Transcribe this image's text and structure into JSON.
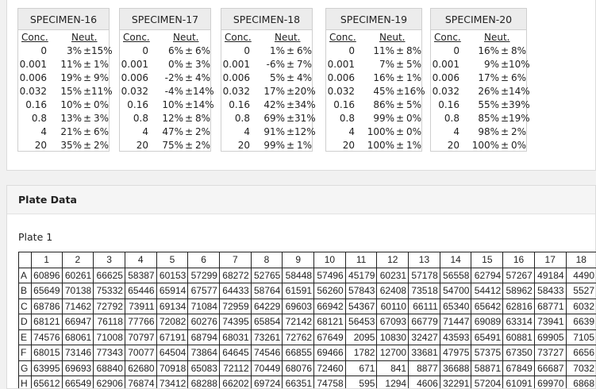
{
  "specimens": [
    {
      "name": "SPECIMEN-16",
      "conc_label": "Conc.",
      "neut_label": "Neut.",
      "rows": [
        [
          "0",
          "3%",
          "15%"
        ],
        [
          "0.001",
          "11%",
          "1%"
        ],
        [
          "0.006",
          "19%",
          "9%"
        ],
        [
          "0.032",
          "15%",
          "11%"
        ],
        [
          "0.16",
          "10%",
          "0%"
        ],
        [
          "0.8",
          "13%",
          "3%"
        ],
        [
          "4",
          "21%",
          "6%"
        ],
        [
          "20",
          "35%",
          "2%"
        ]
      ]
    },
    {
      "name": "SPECIMEN-17",
      "conc_label": "Conc.",
      "neut_label": "Neut.",
      "rows": [
        [
          "0",
          "6%",
          "6%"
        ],
        [
          "0.001",
          "0%",
          "3%"
        ],
        [
          "0.006",
          "-2%",
          "4%"
        ],
        [
          "0.032",
          "-4%",
          "14%"
        ],
        [
          "0.16",
          "10%",
          "14%"
        ],
        [
          "0.8",
          "12%",
          "8%"
        ],
        [
          "4",
          "47%",
          "2%"
        ],
        [
          "20",
          "75%",
          "2%"
        ]
      ]
    },
    {
      "name": "SPECIMEN-18",
      "conc_label": "Conc.",
      "neut_label": "Neut.",
      "rows": [
        [
          "0",
          "1%",
          "6%"
        ],
        [
          "0.001",
          "-6%",
          "7%"
        ],
        [
          "0.006",
          "5%",
          "4%"
        ],
        [
          "0.032",
          "17%",
          "20%"
        ],
        [
          "0.16",
          "42%",
          "34%"
        ],
        [
          "0.8",
          "69%",
          "31%"
        ],
        [
          "4",
          "91%",
          "12%"
        ],
        [
          "20",
          "99%",
          "1%"
        ]
      ]
    },
    {
      "name": "SPECIMEN-19",
      "conc_label": "Conc.",
      "neut_label": "Neut.",
      "rows": [
        [
          "0",
          "11%",
          "8%"
        ],
        [
          "0.001",
          "7%",
          "5%"
        ],
        [
          "0.006",
          "16%",
          "1%"
        ],
        [
          "0.032",
          "45%",
          "16%"
        ],
        [
          "0.16",
          "86%",
          "5%"
        ],
        [
          "0.8",
          "99%",
          "0%"
        ],
        [
          "4",
          "100%",
          "0%"
        ],
        [
          "20",
          "100%",
          "1%"
        ]
      ]
    },
    {
      "name": "SPECIMEN-20",
      "conc_label": "Conc.",
      "neut_label": "Neut.",
      "rows": [
        [
          "0",
          "16%",
          "8%"
        ],
        [
          "0.001",
          "9%",
          "10%"
        ],
        [
          "0.006",
          "17%",
          "6%"
        ],
        [
          "0.032",
          "26%",
          "14%"
        ],
        [
          "0.16",
          "55%",
          "39%"
        ],
        [
          "0.8",
          "85%",
          "19%"
        ],
        [
          "4",
          "98%",
          "2%"
        ],
        [
          "20",
          "100%",
          "0%"
        ]
      ]
    }
  ],
  "pm_symbol": "±",
  "plate_section": {
    "title": "Plate Data",
    "plate_label": "Plate 1",
    "columns": [
      "1",
      "2",
      "3",
      "4",
      "5",
      "6",
      "7",
      "8",
      "9",
      "10",
      "11",
      "12",
      "13",
      "14",
      "15",
      "16",
      "17",
      "18"
    ],
    "rows": [
      {
        "label": "A",
        "values": [
          "60896",
          "60261",
          "66625",
          "58387",
          "60153",
          "57299",
          "68272",
          "52765",
          "58448",
          "57496",
          "45179",
          "60231",
          "57178",
          "56558",
          "62794",
          "57267",
          "49184",
          "4490"
        ]
      },
      {
        "label": "B",
        "values": [
          "65649",
          "70138",
          "75332",
          "65446",
          "65914",
          "67577",
          "64433",
          "58764",
          "61591",
          "56260",
          "57843",
          "62408",
          "73518",
          "54700",
          "54412",
          "58962",
          "58433",
          "5527"
        ]
      },
      {
        "label": "C",
        "values": [
          "68786",
          "71462",
          "72792",
          "73911",
          "69134",
          "71084",
          "72959",
          "64229",
          "69603",
          "66942",
          "54367",
          "60110",
          "66111",
          "65340",
          "65642",
          "62816",
          "68771",
          "6032"
        ]
      },
      {
        "label": "D",
        "values": [
          "68121",
          "66947",
          "76118",
          "77766",
          "72082",
          "60276",
          "74395",
          "65854",
          "72142",
          "68121",
          "56453",
          "67093",
          "66779",
          "71447",
          "69089",
          "63314",
          "73941",
          "6639"
        ]
      },
      {
        "label": "E",
        "values": [
          "74576",
          "68061",
          "71008",
          "70797",
          "67191",
          "68794",
          "68031",
          "73261",
          "72762",
          "67649",
          "2095",
          "10830",
          "32427",
          "43593",
          "65491",
          "60881",
          "69905",
          "7105"
        ]
      },
      {
        "label": "F",
        "values": [
          "68015",
          "73146",
          "77343",
          "70077",
          "64504",
          "73864",
          "64645",
          "74546",
          "66855",
          "69466",
          "1782",
          "12700",
          "33681",
          "47975",
          "57375",
          "67350",
          "73727",
          "6656"
        ]
      },
      {
        "label": "G",
        "values": [
          "63995",
          "69693",
          "68840",
          "62680",
          "70918",
          "65083",
          "72112",
          "70449",
          "68076",
          "72460",
          "671",
          "841",
          "8877",
          "36688",
          "58871",
          "67849",
          "66687",
          "7032"
        ]
      },
      {
        "label": "H",
        "values": [
          "65612",
          "66549",
          "62906",
          "76874",
          "73412",
          "68288",
          "66202",
          "69724",
          "66351",
          "74758",
          "595",
          "1294",
          "4606",
          "32291",
          "57204",
          "61091",
          "69970",
          "6868"
        ]
      }
    ]
  }
}
